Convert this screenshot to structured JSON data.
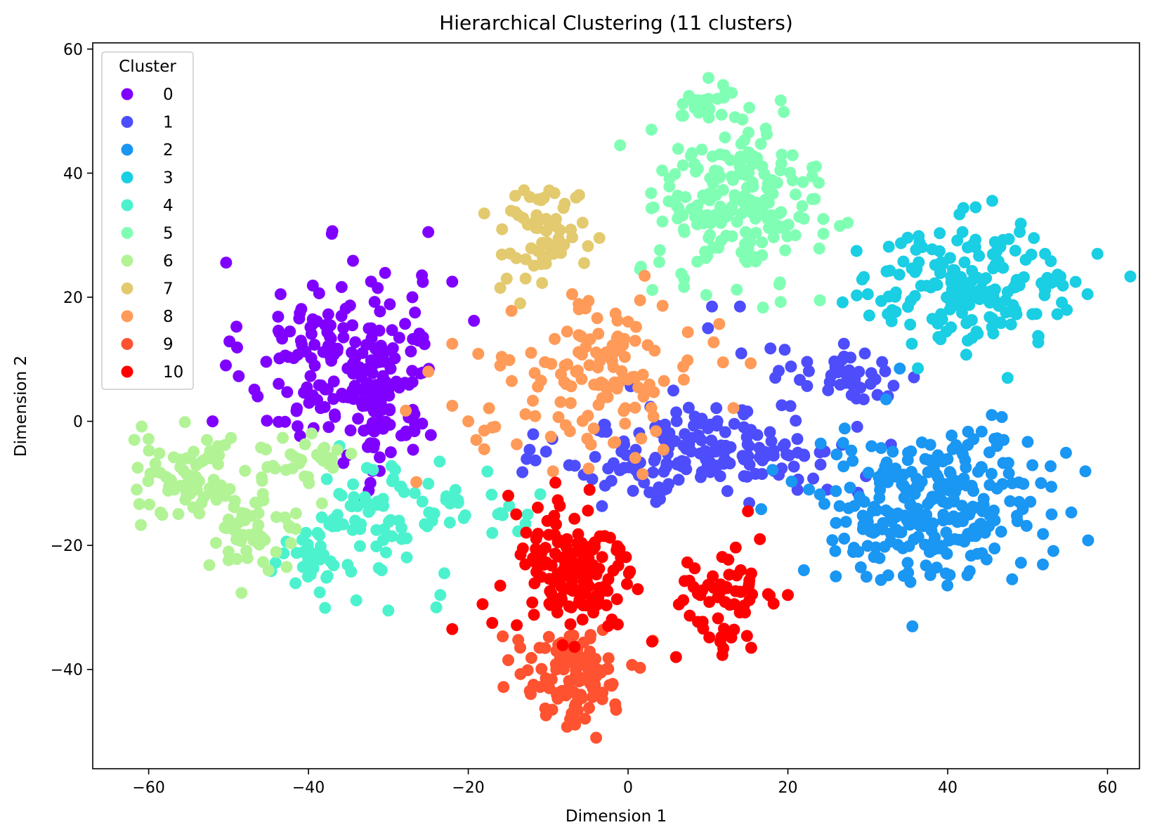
{
  "chart_data": {
    "type": "scatter",
    "title": "Hierarchical Clustering (11 clusters)",
    "xlabel": "Dimension 1",
    "ylabel": "Dimension 2",
    "xlim": [
      -67,
      64
    ],
    "ylim": [
      -56,
      61
    ],
    "xticks": [
      -60,
      -40,
      -20,
      0,
      20,
      40,
      60
    ],
    "yticks": [
      -40,
      -20,
      0,
      20,
      40,
      60
    ],
    "grid": false,
    "legend": {
      "title": "Cluster",
      "placement": "top-left"
    },
    "series": [
      {
        "name": "0",
        "color": "#8000ff",
        "clusters": [
          {
            "cx": -37,
            "cy": 10,
            "sx": 5.5,
            "sy": 8,
            "n": 150
          },
          {
            "cx": -30,
            "cy": 5,
            "sx": 3,
            "sy": 7,
            "n": 70
          }
        ],
        "outliers": [
          [
            -25,
            30.5
          ],
          [
            -22,
            22.5
          ],
          [
            -52,
            0
          ],
          [
            -32,
            -8
          ],
          [
            -27,
            20
          ]
        ]
      },
      {
        "name": "1",
        "color": "#4d4dfc",
        "clusters": [
          {
            "cx": 10,
            "cy": -5,
            "sx": 9,
            "sy": 3.8,
            "n": 180
          },
          {
            "cx": 27,
            "cy": 7,
            "sx": 5,
            "sy": 2.5,
            "n": 45
          }
        ],
        "outliers": [
          [
            10.5,
            18.5
          ],
          [
            14,
            18.5
          ],
          [
            10,
            15
          ],
          [
            -0.5,
            -7.5
          ],
          [
            3.5,
            -13
          ],
          [
            24,
            -5
          ]
        ]
      },
      {
        "name": "2",
        "color": "#1a96f3",
        "clusters": [
          {
            "cx": 37,
            "cy": -14,
            "sx": 7,
            "sy": 5.8,
            "n": 240
          },
          {
            "cx": 46,
            "cy": -8,
            "sx": 4,
            "sy": 4,
            "n": 40
          }
        ],
        "outliers": [
          [
            22,
            -24
          ],
          [
            26,
            -25
          ],
          [
            47,
            -3
          ],
          [
            53,
            -15
          ],
          [
            34,
            8.5
          ]
        ]
      },
      {
        "name": "3",
        "color": "#1acee3",
        "clusters": [
          {
            "cx": 43,
            "cy": 22,
            "sx": 7,
            "sy": 4.8,
            "n": 180
          }
        ],
        "outliers": [
          [
            47.5,
            7
          ],
          [
            30,
            20.5
          ],
          [
            57.5,
            20.5
          ],
          [
            43.5,
            34.5
          ]
        ]
      },
      {
        "name": "4",
        "color": "#4cf2ce",
        "clusters": [
          {
            "cx": -31,
            "cy": -15,
            "sx": 4,
            "sy": 4.5,
            "n": 60
          },
          {
            "cx": -39,
            "cy": -22,
            "sx": 2.8,
            "sy": 3,
            "n": 40
          },
          {
            "cx": -20,
            "cy": -14,
            "sx": 3.5,
            "sy": 2.5,
            "n": 20
          }
        ],
        "outliers": [
          [
            -24,
            -30
          ],
          [
            -23.5,
            -28
          ],
          [
            -30,
            -30.5
          ],
          [
            -23,
            -24.5
          ],
          [
            -17,
            -18
          ]
        ]
      },
      {
        "name": "5",
        "color": "#80ffb4",
        "clusters": [
          {
            "cx": 14,
            "cy": 36,
            "sx": 5,
            "sy": 6.5,
            "n": 200
          },
          {
            "cx": 9,
            "cy": 51,
            "sx": 2.2,
            "sy": 2.2,
            "n": 20
          }
        ],
        "outliers": [
          [
            -1,
            44.5
          ],
          [
            1.5,
            24.5
          ],
          [
            24,
            19.5
          ],
          [
            26.5,
            31.5
          ],
          [
            27.5,
            32
          ],
          [
            7,
            23
          ]
        ]
      },
      {
        "name": "6",
        "color": "#b2f396",
        "clusters": [
          {
            "cx": -55,
            "cy": -9,
            "sx": 3.5,
            "sy": 3.8,
            "n": 70
          },
          {
            "cx": -47,
            "cy": -18,
            "sx": 2.8,
            "sy": 3.2,
            "n": 50
          },
          {
            "cx": -40,
            "cy": -6.5,
            "sx": 3,
            "sy": 2.2,
            "n": 30
          }
        ],
        "outliers": [
          [
            -61.5,
            -11
          ],
          [
            -45,
            -24
          ],
          [
            -50,
            -21
          ]
        ]
      },
      {
        "name": "7",
        "color": "#e3ca6f",
        "clusters": [
          {
            "cx": -11,
            "cy": 31,
            "sx": 3,
            "sy": 3.8,
            "n": 60
          }
        ],
        "outliers": [
          [
            -13.5,
            19
          ],
          [
            -18,
            33.5
          ],
          [
            -5.5,
            25.5
          ],
          [
            -16,
            21.5
          ]
        ]
      },
      {
        "name": "8",
        "color": "#ff9a58",
        "clusters": [
          {
            "cx": -3,
            "cy": 7,
            "sx": 6,
            "sy": 6,
            "n": 130
          }
        ],
        "outliers": [
          [
            -25,
            8
          ],
          [
            -22,
            12.5
          ],
          [
            -20,
            0
          ],
          [
            -18,
            -1.5
          ],
          [
            -19,
            -3
          ],
          [
            -18,
            -4.5
          ],
          [
            -17,
            -1
          ],
          [
            -22,
            2.5
          ],
          [
            -16,
            9
          ],
          [
            -7,
            20.5
          ],
          [
            1.5,
            19.5
          ],
          [
            4.5,
            6.5
          ]
        ]
      },
      {
        "name": "9",
        "color": "#ff5230",
        "clusters": [
          {
            "cx": -7,
            "cy": -41,
            "sx": 3.2,
            "sy": 4,
            "n": 110
          }
        ],
        "outliers": [
          [
            -15,
            -38.5
          ],
          [
            -1.5,
            -46.5
          ],
          [
            -13.5,
            -36.5
          ],
          [
            -4,
            -51
          ]
        ]
      },
      {
        "name": "10",
        "color": "#ff0000",
        "clusters": [
          {
            "cx": -7,
            "cy": -24,
            "sx": 3.5,
            "sy": 5.5,
            "n": 150
          },
          {
            "cx": 12,
            "cy": -30,
            "sx": 3.5,
            "sy": 4.5,
            "n": 60
          }
        ],
        "outliers": [
          [
            -15,
            -12
          ],
          [
            -14,
            -15
          ],
          [
            -16,
            -26.5
          ],
          [
            3,
            -35.5
          ],
          [
            6,
            -38
          ],
          [
            15,
            -14.5
          ],
          [
            16.5,
            -19
          ],
          [
            20,
            -28
          ],
          [
            -2.5,
            -33
          ],
          [
            -17,
            -32.5
          ],
          [
            -22,
            -33.5
          ]
        ]
      }
    ]
  }
}
